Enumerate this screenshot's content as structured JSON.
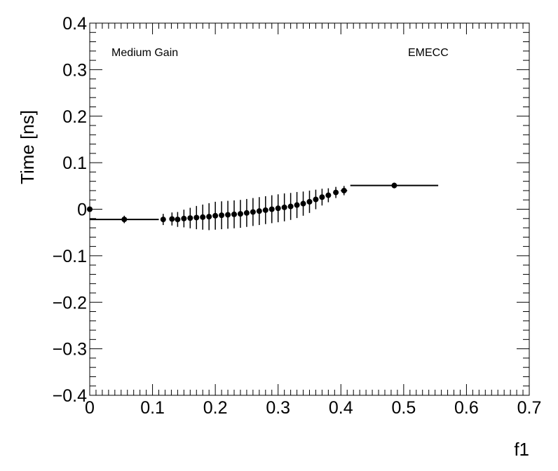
{
  "chart_data": {
    "type": "scatter",
    "title": "",
    "xlabel": "f1",
    "ylabel": "Time [ns]",
    "xlim": [
      0,
      0.7
    ],
    "ylim": [
      -0.4,
      0.4
    ],
    "xticks": [
      0,
      0.1,
      0.2,
      0.3,
      0.4,
      0.5,
      0.6,
      0.7
    ],
    "yticks": [
      -0.4,
      -0.3,
      -0.2,
      -0.1,
      0,
      0.1,
      0.2,
      0.3,
      0.4
    ],
    "x_tick_labels": [
      "0",
      "0.1",
      "0.2",
      "0.3",
      "0.4",
      "0.5",
      "0.6",
      "0.7"
    ],
    "y_tick_labels": [
      "−0.4",
      "−0.3",
      "−0.2",
      "−0.1",
      "0",
      "0.1",
      "0.2",
      "0.3",
      "0.4"
    ],
    "grid": false,
    "annotations": [
      {
        "text": "Medium Gain",
        "position": "top-left"
      },
      {
        "text": "EMECC",
        "position": "top-right"
      }
    ],
    "series": [
      {
        "points": [
          {
            "x": 0.0,
            "y": 0.0,
            "xerr": 0.0,
            "yerr": 0.0
          },
          {
            "x": 0.055,
            "y": -0.022,
            "xerr": 0.055,
            "yerr": 0.008
          },
          {
            "x": 0.117,
            "y": -0.022,
            "xerr": 0.004,
            "yerr": 0.012
          },
          {
            "x": 0.131,
            "y": -0.021,
            "xerr": 0.004,
            "yerr": 0.014
          },
          {
            "x": 0.14,
            "y": -0.022,
            "xerr": 0.004,
            "yerr": 0.016
          },
          {
            "x": 0.15,
            "y": -0.02,
            "xerr": 0.004,
            "yerr": 0.019
          },
          {
            "x": 0.16,
            "y": -0.019,
            "xerr": 0.004,
            "yerr": 0.022
          },
          {
            "x": 0.17,
            "y": -0.018,
            "xerr": 0.004,
            "yerr": 0.025
          },
          {
            "x": 0.18,
            "y": -0.017,
            "xerr": 0.004,
            "yerr": 0.027
          },
          {
            "x": 0.19,
            "y": -0.016,
            "xerr": 0.004,
            "yerr": 0.029
          },
          {
            "x": 0.2,
            "y": -0.014,
            "xerr": 0.004,
            "yerr": 0.03
          },
          {
            "x": 0.21,
            "y": -0.013,
            "xerr": 0.004,
            "yerr": 0.03
          },
          {
            "x": 0.22,
            "y": -0.012,
            "xerr": 0.004,
            "yerr": 0.03
          },
          {
            "x": 0.23,
            "y": -0.011,
            "xerr": 0.004,
            "yerr": 0.03
          },
          {
            "x": 0.24,
            "y": -0.01,
            "xerr": 0.004,
            "yerr": 0.03
          },
          {
            "x": 0.25,
            "y": -0.008,
            "xerr": 0.004,
            "yerr": 0.03
          },
          {
            "x": 0.26,
            "y": -0.006,
            "xerr": 0.004,
            "yerr": 0.03
          },
          {
            "x": 0.27,
            "y": -0.004,
            "xerr": 0.004,
            "yerr": 0.03
          },
          {
            "x": 0.28,
            "y": -0.002,
            "xerr": 0.004,
            "yerr": 0.03
          },
          {
            "x": 0.29,
            "y": 0.0,
            "xerr": 0.004,
            "yerr": 0.03
          },
          {
            "x": 0.3,
            "y": 0.002,
            "xerr": 0.004,
            "yerr": 0.03
          },
          {
            "x": 0.31,
            "y": 0.004,
            "xerr": 0.004,
            "yerr": 0.03
          },
          {
            "x": 0.32,
            "y": 0.006,
            "xerr": 0.004,
            "yerr": 0.029
          },
          {
            "x": 0.33,
            "y": 0.009,
            "xerr": 0.004,
            "yerr": 0.028
          },
          {
            "x": 0.34,
            "y": 0.012,
            "xerr": 0.004,
            "yerr": 0.026
          },
          {
            "x": 0.35,
            "y": 0.016,
            "xerr": 0.004,
            "yerr": 0.024
          },
          {
            "x": 0.36,
            "y": 0.021,
            "xerr": 0.004,
            "yerr": 0.021
          },
          {
            "x": 0.37,
            "y": 0.026,
            "xerr": 0.004,
            "yerr": 0.018
          },
          {
            "x": 0.38,
            "y": 0.03,
            "xerr": 0.004,
            "yerr": 0.015
          },
          {
            "x": 0.392,
            "y": 0.036,
            "xerr": 0.004,
            "yerr": 0.012
          },
          {
            "x": 0.405,
            "y": 0.04,
            "xerr": 0.005,
            "yerr": 0.01
          },
          {
            "x": 0.485,
            "y": 0.051,
            "xerr": 0.07,
            "yerr": 0.006
          }
        ]
      }
    ]
  }
}
